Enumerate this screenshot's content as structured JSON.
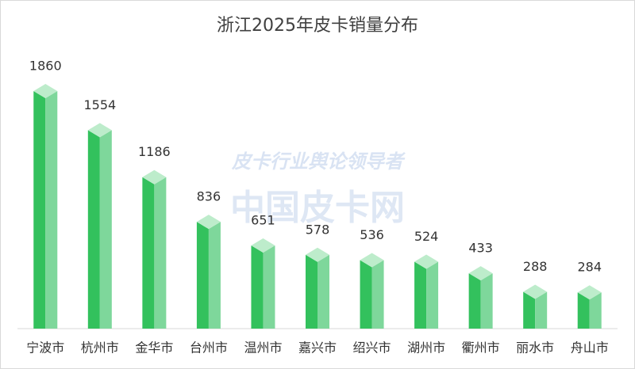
{
  "chart_data": {
    "type": "bar",
    "title": "浙江2025年皮卡销量分布",
    "categories": [
      "宁波市",
      "杭州市",
      "金华市",
      "台州市",
      "温州市",
      "嘉兴市",
      "绍兴市",
      "湖州市",
      "衢州市",
      "丽水市",
      "舟山市"
    ],
    "values": [
      1860,
      1554,
      1186,
      836,
      651,
      578,
      536,
      524,
      433,
      288,
      284
    ],
    "color": "#33c15d",
    "watermarks": [
      "皮卡行业舆论领导者",
      "中国皮卡网"
    ]
  }
}
